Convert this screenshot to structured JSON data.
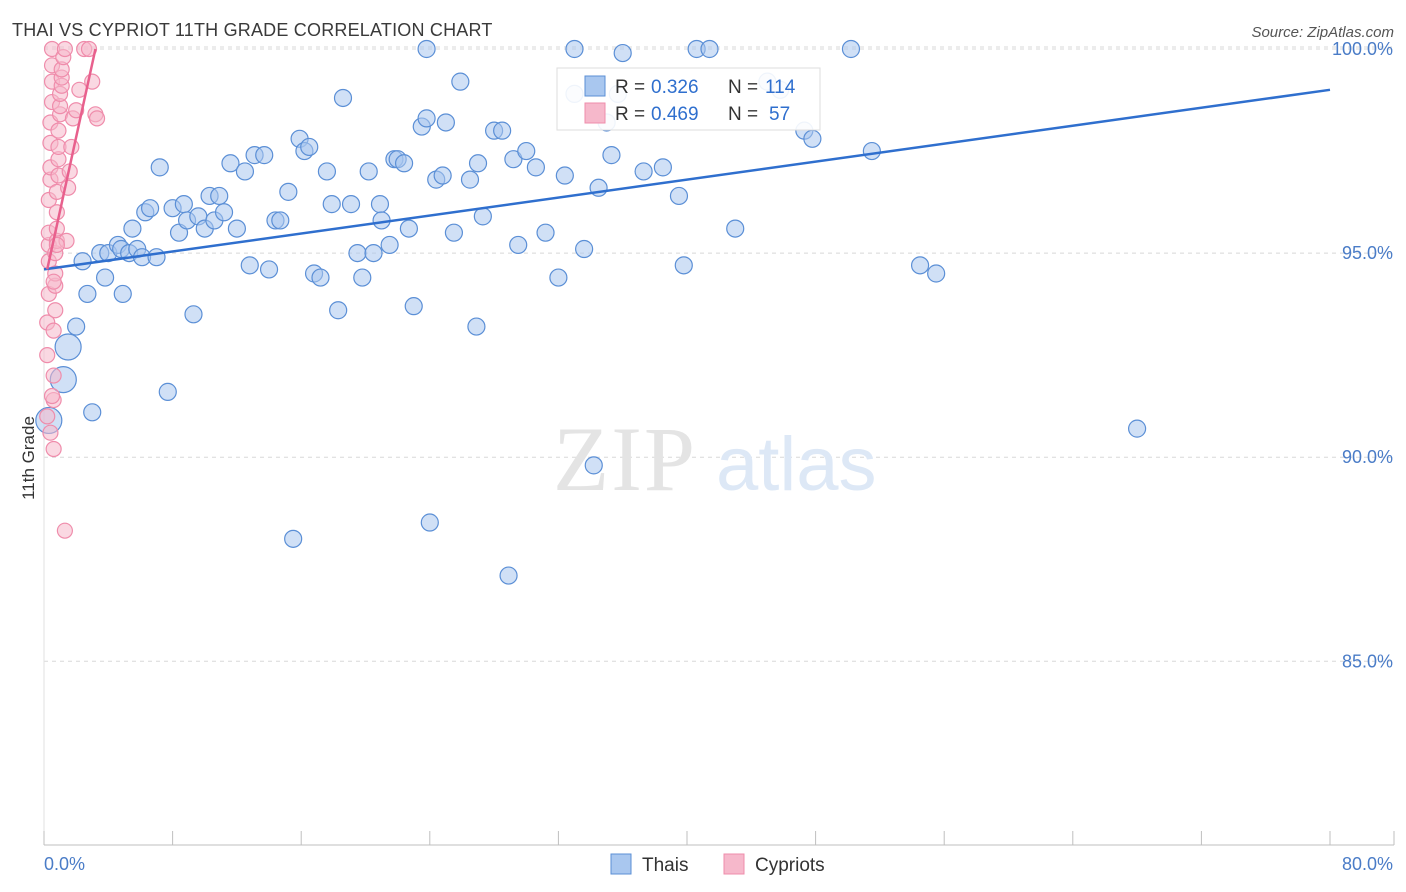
{
  "title": "THAI VS CYPRIOT 11TH GRADE CORRELATION CHART",
  "source": "Source: ZipAtlas.com",
  "watermark": {
    "zip": "ZIP",
    "atlas": "atlas"
  },
  "colors": {
    "thai_fill": "#a9c7ef",
    "thai_stroke": "#5b8fd6",
    "thai_line": "#2f6fce",
    "cyp_fill": "#f6b8cb",
    "cyp_stroke": "#ef8cab",
    "cyp_line": "#e8608d",
    "axis_text": "#4a7cc7",
    "grid": "#d8d8d8"
  },
  "stats_legend": [
    {
      "r_label": "R =",
      "r_value": "0.326",
      "n_label": "N =",
      "n_value": "114"
    },
    {
      "r_label": "R =",
      "r_value": "0.469",
      "n_label": "N =",
      "n_value": "57"
    }
  ],
  "chart_data": {
    "type": "scatter",
    "xlabel": "",
    "ylabel": "11th Grade",
    "xlim": [
      0,
      80
    ],
    "ylim": [
      80.5,
      101.2
    ],
    "x_tick_labels": [
      "0.0%",
      "80.0%"
    ],
    "y_ticks": [
      85,
      90,
      95,
      100
    ],
    "y_tick_labels": [
      "85.0%",
      "90.0%",
      "95.0%",
      "100.0%"
    ],
    "grid": true,
    "legend": [
      "Thais",
      "Cypriots"
    ],
    "series": [
      {
        "name": "Thais",
        "trend": {
          "x": [
            0,
            80
          ],
          "y": [
            94.6,
            99.0
          ]
        },
        "points": [
          [
            0.3,
            90.9
          ],
          [
            1.5,
            92.7
          ],
          [
            1.2,
            91.9
          ],
          [
            2.0,
            93.2
          ],
          [
            3.0,
            91.1
          ],
          [
            2.4,
            94.8
          ],
          [
            2.7,
            94.0
          ],
          [
            3.5,
            95.0
          ],
          [
            3.8,
            94.4
          ],
          [
            4.0,
            95.0
          ],
          [
            4.6,
            95.2
          ],
          [
            4.8,
            95.1
          ],
          [
            5.3,
            95.0
          ],
          [
            4.9,
            94.0
          ],
          [
            5.5,
            95.6
          ],
          [
            5.8,
            95.1
          ],
          [
            6.1,
            94.9
          ],
          [
            6.3,
            96.0
          ],
          [
            6.6,
            96.1
          ],
          [
            7.0,
            94.9
          ],
          [
            7.2,
            97.1
          ],
          [
            7.7,
            91.6
          ],
          [
            8.0,
            96.1
          ],
          [
            8.4,
            95.5
          ],
          [
            8.7,
            96.2
          ],
          [
            8.9,
            95.8
          ],
          [
            9.3,
            93.5
          ],
          [
            9.6,
            95.9
          ],
          [
            10.0,
            95.6
          ],
          [
            10.3,
            96.4
          ],
          [
            10.6,
            95.8
          ],
          [
            10.9,
            96.4
          ],
          [
            11.2,
            96.0
          ],
          [
            11.6,
            97.2
          ],
          [
            12.0,
            95.6
          ],
          [
            12.5,
            97.0
          ],
          [
            12.8,
            94.7
          ],
          [
            13.1,
            97.4
          ],
          [
            13.7,
            97.4
          ],
          [
            14.0,
            94.6
          ],
          [
            14.4,
            95.8
          ],
          [
            14.7,
            95.8
          ],
          [
            15.2,
            96.5
          ],
          [
            15.5,
            88.0
          ],
          [
            15.9,
            97.8
          ],
          [
            16.2,
            97.5
          ],
          [
            16.5,
            97.6
          ],
          [
            16.8,
            94.5
          ],
          [
            17.2,
            94.4
          ],
          [
            17.6,
            97.0
          ],
          [
            17.9,
            96.2
          ],
          [
            18.3,
            93.6
          ],
          [
            18.6,
            98.8
          ],
          [
            19.1,
            96.2
          ],
          [
            19.5,
            95.0
          ],
          [
            19.8,
            94.4
          ],
          [
            20.2,
            97.0
          ],
          [
            20.5,
            95.0
          ],
          [
            20.9,
            96.2
          ],
          [
            21.0,
            95.8
          ],
          [
            21.5,
            95.2
          ],
          [
            21.8,
            97.3
          ],
          [
            22.0,
            97.3
          ],
          [
            22.4,
            97.2
          ],
          [
            22.7,
            95.6
          ],
          [
            23.0,
            93.7
          ],
          [
            23.5,
            98.1
          ],
          [
            23.8,
            98.3
          ],
          [
            24.0,
            88.4
          ],
          [
            24.4,
            96.8
          ],
          [
            24.8,
            96.9
          ],
          [
            25.0,
            98.2
          ],
          [
            25.5,
            95.5
          ],
          [
            25.9,
            99.2
          ],
          [
            26.5,
            96.8
          ],
          [
            26.9,
            93.2
          ],
          [
            27.0,
            97.2
          ],
          [
            27.3,
            95.9
          ],
          [
            28.0,
            98.0
          ],
          [
            28.5,
            98.0
          ],
          [
            28.9,
            87.1
          ],
          [
            29.2,
            97.3
          ],
          [
            29.5,
            95.2
          ],
          [
            30.0,
            97.5
          ],
          [
            30.6,
            97.1
          ],
          [
            31.2,
            95.5
          ],
          [
            32.0,
            94.4
          ],
          [
            32.4,
            96.9
          ],
          [
            33.0,
            98.9
          ],
          [
            33.6,
            95.1
          ],
          [
            34.2,
            89.8
          ],
          [
            34.5,
            96.6
          ],
          [
            35.0,
            98.2
          ],
          [
            35.3,
            97.4
          ],
          [
            35.7,
            98.9
          ],
          [
            36.0,
            99.9
          ],
          [
            37.3,
            97.0
          ],
          [
            38.5,
            97.1
          ],
          [
            39.5,
            96.4
          ],
          [
            39.8,
            94.7
          ],
          [
            40.6,
            100.0
          ],
          [
            41.4,
            100.0
          ],
          [
            43.0,
            95.6
          ],
          [
            45.0,
            99.2
          ],
          [
            45.8,
            99.0
          ],
          [
            47.3,
            98.0
          ],
          [
            47.8,
            97.8
          ],
          [
            50.2,
            100.0
          ],
          [
            51.5,
            97.5
          ],
          [
            54.5,
            94.7
          ],
          [
            55.5,
            94.5
          ],
          [
            68.0,
            90.7
          ],
          [
            33.0,
            100.0
          ],
          [
            23.8,
            100.0
          ]
        ]
      },
      {
        "name": "Cypriots",
        "trend": {
          "x": [
            0.2,
            3.2
          ],
          "y": [
            94.6,
            100.0
          ]
        },
        "points": [
          [
            0.2,
            91.0
          ],
          [
            0.2,
            92.5
          ],
          [
            0.2,
            93.3
          ],
          [
            0.3,
            94.0
          ],
          [
            0.3,
            94.8
          ],
          [
            0.3,
            95.2
          ],
          [
            0.3,
            95.5
          ],
          [
            0.3,
            96.3
          ],
          [
            0.4,
            96.8
          ],
          [
            0.4,
            97.1
          ],
          [
            0.4,
            97.7
          ],
          [
            0.4,
            98.2
          ],
          [
            0.5,
            98.7
          ],
          [
            0.5,
            99.2
          ],
          [
            0.5,
            99.6
          ],
          [
            0.5,
            100.0
          ],
          [
            0.6,
            90.2
          ],
          [
            0.6,
            91.4
          ],
          [
            0.6,
            92.0
          ],
          [
            0.6,
            93.1
          ],
          [
            0.7,
            93.6
          ],
          [
            0.7,
            94.2
          ],
          [
            0.7,
            94.5
          ],
          [
            0.7,
            95.0
          ],
          [
            0.8,
            95.3
          ],
          [
            0.8,
            95.6
          ],
          [
            0.8,
            96.0
          ],
          [
            0.8,
            96.5
          ],
          [
            0.9,
            96.9
          ],
          [
            0.9,
            97.3
          ],
          [
            0.9,
            97.6
          ],
          [
            0.9,
            98.0
          ],
          [
            1.0,
            98.4
          ],
          [
            1.0,
            98.6
          ],
          [
            1.0,
            98.9
          ],
          [
            1.1,
            99.1
          ],
          [
            1.1,
            99.3
          ],
          [
            1.1,
            99.5
          ],
          [
            1.2,
            99.8
          ],
          [
            1.3,
            100.0
          ],
          [
            1.3,
            88.2
          ],
          [
            1.4,
            95.3
          ],
          [
            1.5,
            96.6
          ],
          [
            1.6,
            97.0
          ],
          [
            1.7,
            97.6
          ],
          [
            1.8,
            98.3
          ],
          [
            2.0,
            98.5
          ],
          [
            2.2,
            99.0
          ],
          [
            2.5,
            100.0
          ],
          [
            2.8,
            100.0
          ],
          [
            3.0,
            99.2
          ],
          [
            3.2,
            98.4
          ],
          [
            3.3,
            98.3
          ],
          [
            0.4,
            90.6
          ],
          [
            0.5,
            91.5
          ],
          [
            0.6,
            94.3
          ],
          [
            0.8,
            95.2
          ]
        ]
      }
    ]
  }
}
